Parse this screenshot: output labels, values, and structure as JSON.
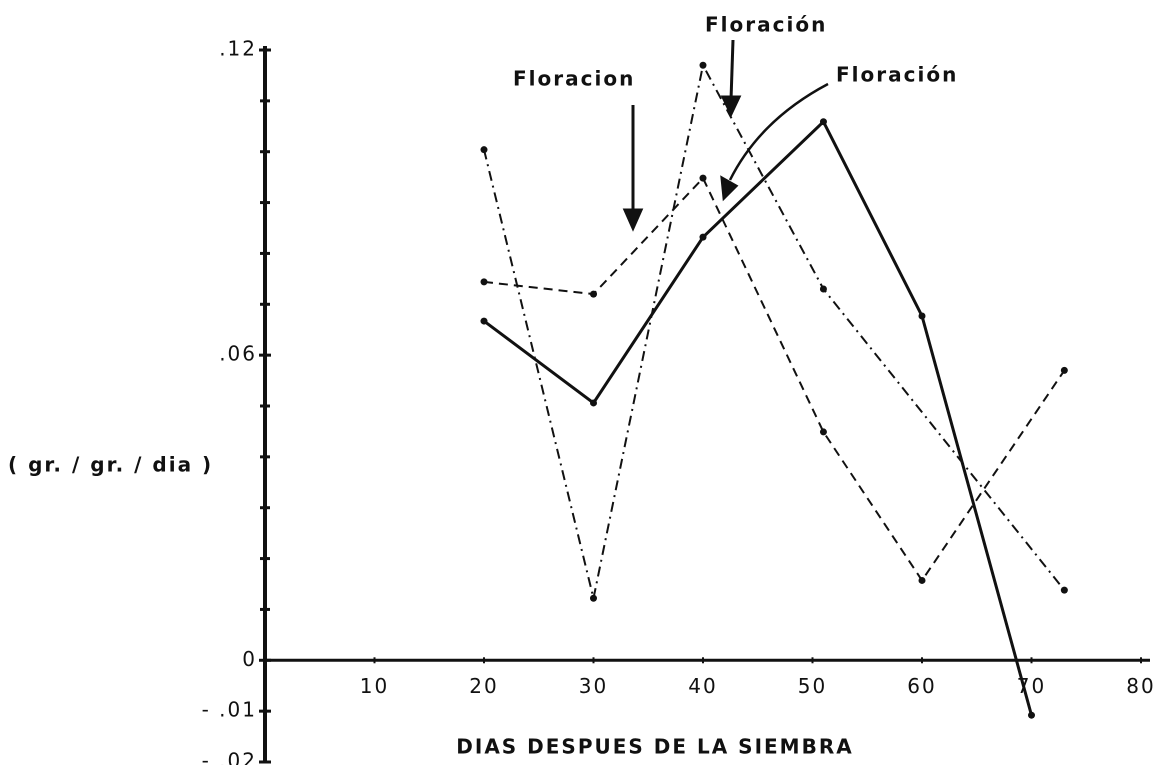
{
  "chart_data": {
    "type": "line",
    "xlabel": "DIAS DESPUES DE LA SIEMBRA",
    "ylabel": "( gr. / gr. / dia )",
    "xlim": [
      0,
      80
    ],
    "ylim": [
      -0.02,
      0.12
    ],
    "xticks": [
      10,
      20,
      30,
      40,
      50,
      60,
      70,
      80
    ],
    "yticks": [
      {
        "value": 0.12,
        "label": ".12"
      },
      {
        "value": 0.06,
        "label": ".06"
      },
      0,
      {
        "value": -0.01,
        "label": "- .01"
      },
      {
        "value": -0.02,
        "label": "- .02"
      }
    ],
    "yminor_ticks": [
      0.11,
      0.1,
      0.09,
      0.08,
      0.07,
      0.05,
      0.04,
      0.03,
      0.02,
      0.01
    ],
    "series": [
      {
        "color": "#111111",
        "dash": "solid",
        "x": [
          20,
          30,
          40,
          51,
          60,
          70
        ],
        "values": [
          0.0667,
          0.0506,
          0.0832,
          0.1059,
          0.0677,
          -0.0108
        ]
      },
      {
        "color": "#111111",
        "dash": "dashed",
        "x": [
          20,
          30,
          40,
          51,
          60,
          73
        ],
        "values": [
          0.0744,
          0.072,
          0.0948,
          0.0449,
          0.0157,
          0.057
        ]
      },
      {
        "color": "#111111",
        "dash": "dashdot",
        "x": [
          20,
          30,
          40,
          51,
          73
        ],
        "values": [
          0.1004,
          0.0122,
          0.117,
          0.073,
          0.0138
        ]
      }
    ],
    "annotations": [
      "Floracion",
      "Floración",
      "Floración"
    ]
  }
}
